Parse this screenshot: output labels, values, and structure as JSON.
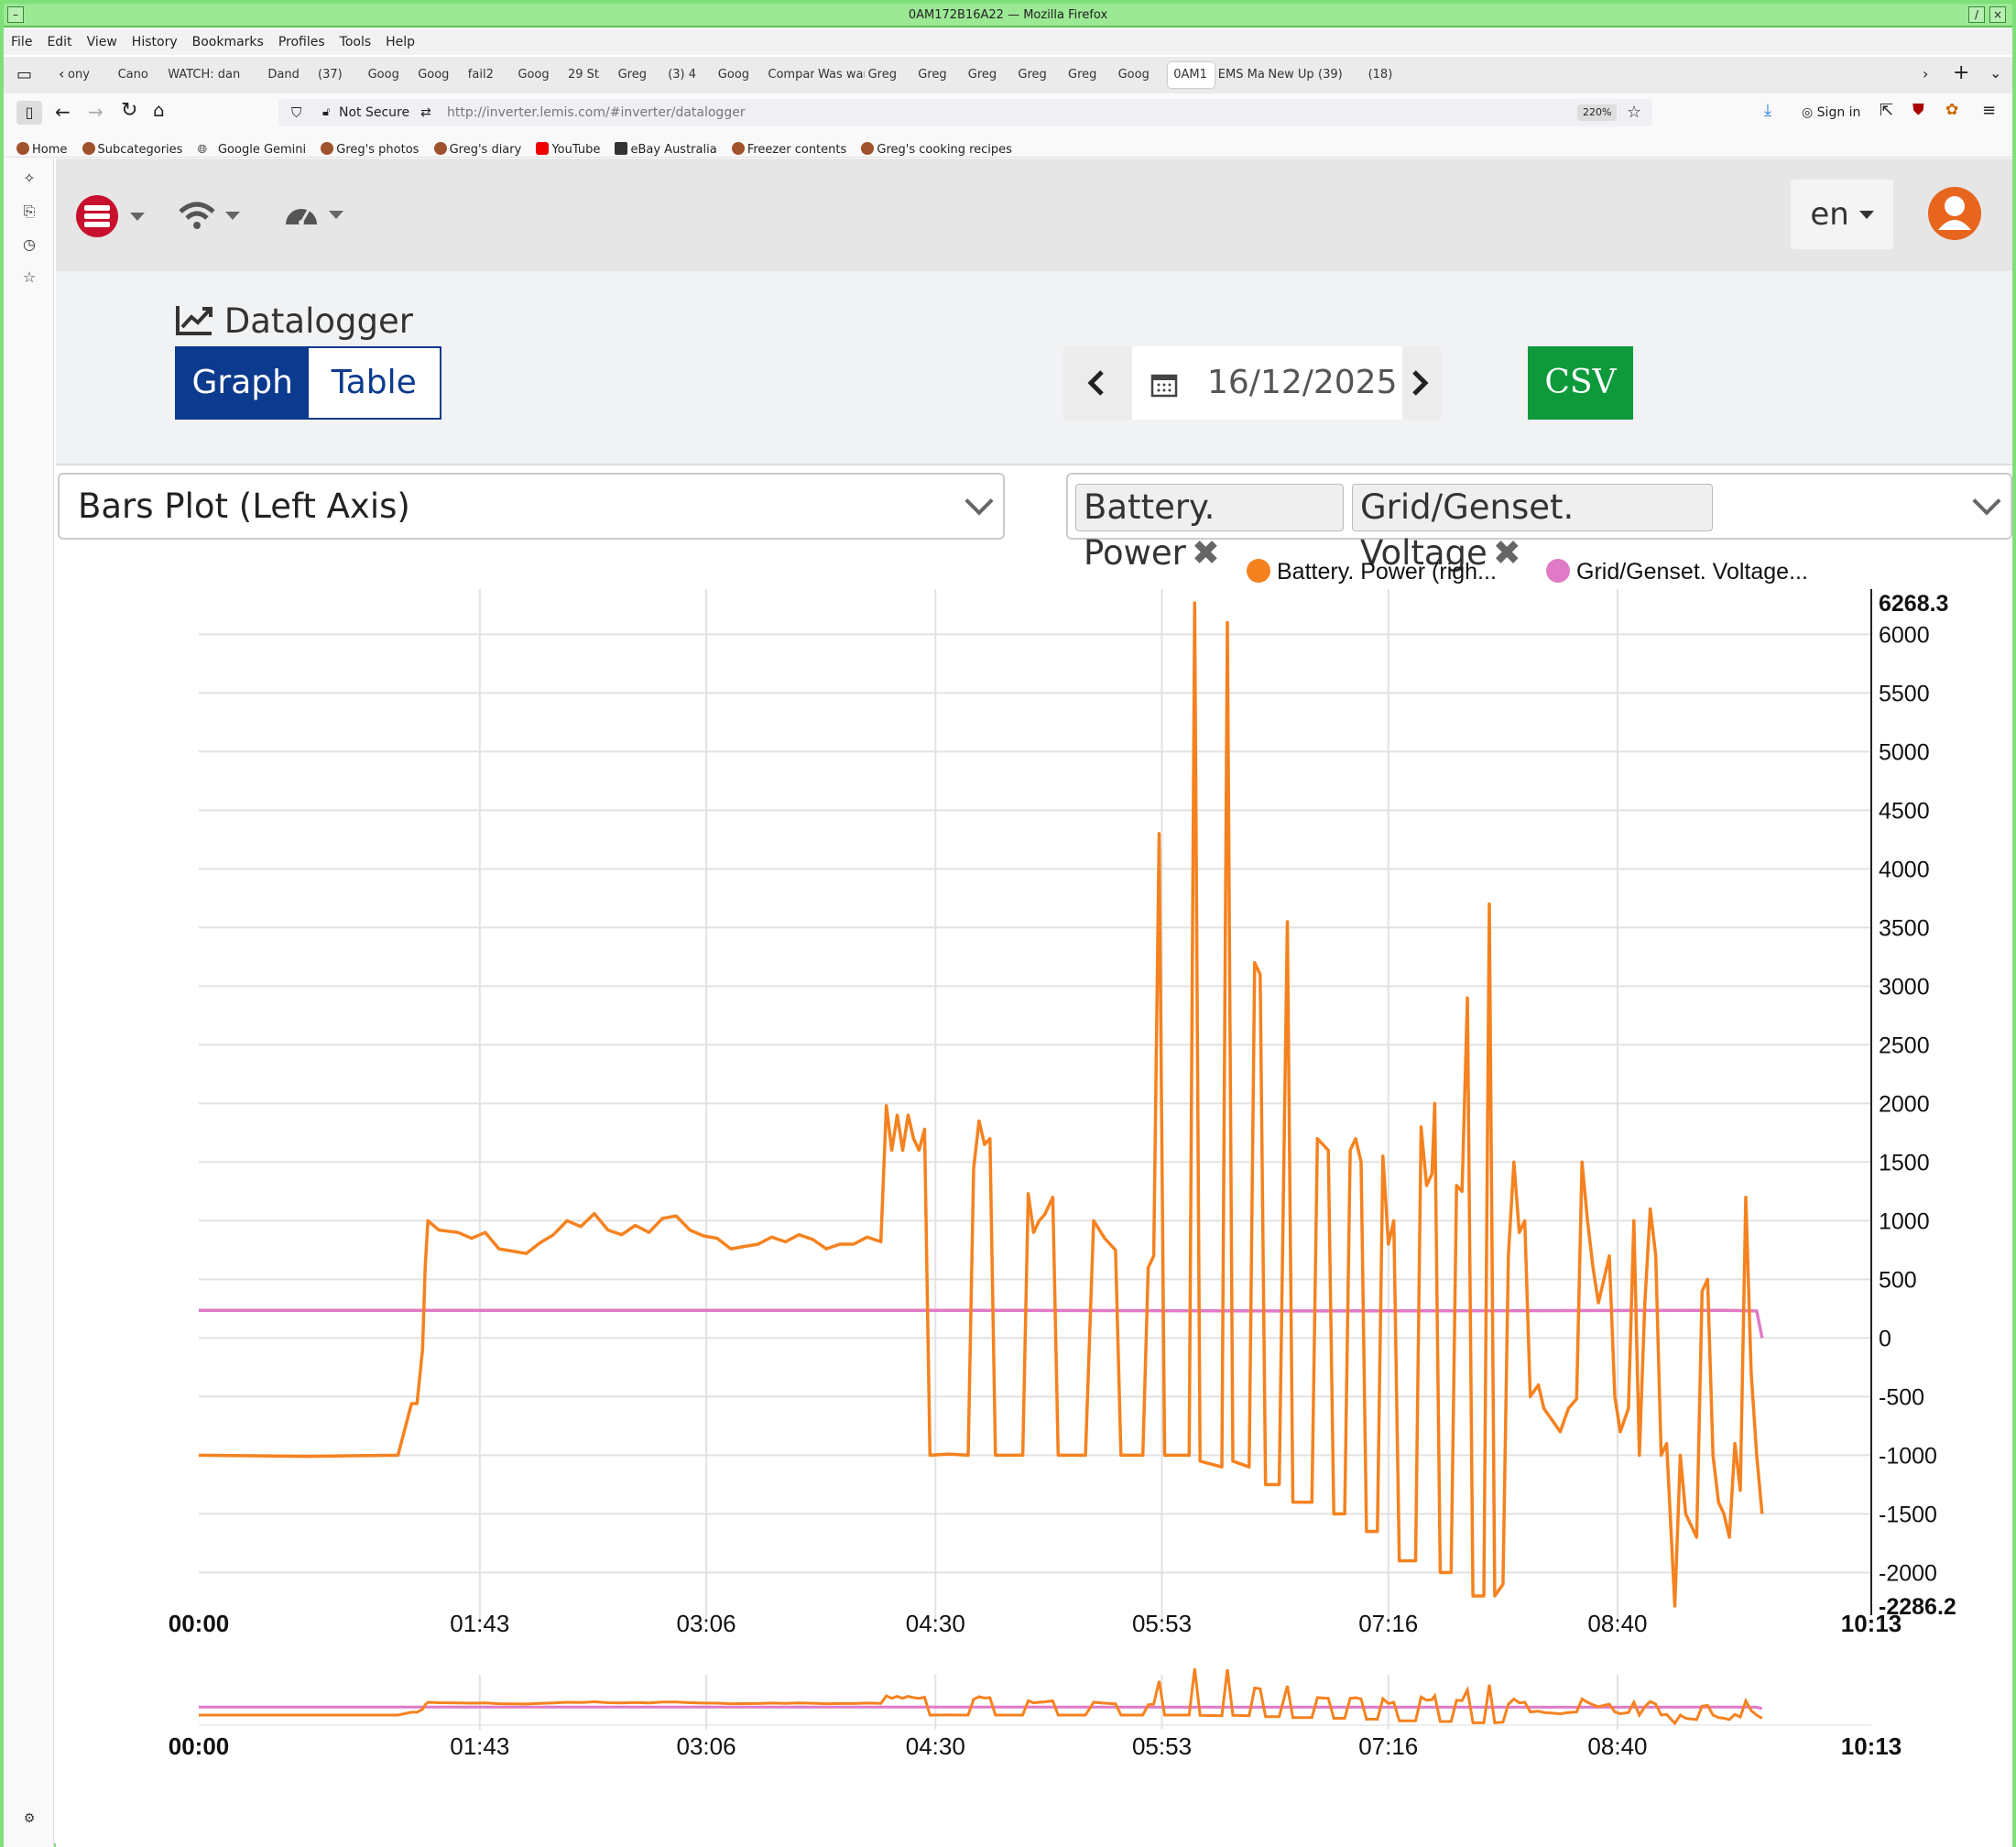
{
  "window": {
    "title": "0AM172B16A22 — Mozilla Firefox"
  },
  "menu": [
    "File",
    "Edit",
    "View",
    "History",
    "Bookmarks",
    "Profiles",
    "Tools",
    "Help"
  ],
  "tabs": [
    "ony",
    "Cano",
    "WATCH:",
    "dan",
    "Dand",
    "(37)",
    "Goog",
    "Goog",
    "fail2",
    "Goog",
    "29 St",
    "Greg",
    "(3) 4",
    "Goog",
    "Compar",
    "Was war",
    "Greg",
    "Greg",
    "Greg",
    "Greg",
    "Greg",
    "Goog",
    "0AM1",
    "EMS Mar",
    "New Up",
    "(39)",
    "(18)"
  ],
  "active_tab": "0AM1",
  "nav": {
    "security": "Not Secure",
    "url": "http://inverter.lemis.com/#inverter/datalogger",
    "zoom": "220%",
    "sign_in": "Sign in"
  },
  "bookmarks": [
    "Home",
    "Subcategories",
    "Google Gemini",
    "Greg's photos",
    "Greg's diary",
    "YouTube",
    "eBay Australia",
    "Freezer contents",
    "Greg's cooking recipes"
  ],
  "app": {
    "lang": "en",
    "page_title": "Datalogger",
    "view_graph": "Graph",
    "view_table": "Table",
    "date": "16/12/2025",
    "csv": "CSV",
    "plot_type": "Bars Plot (Left Axis)",
    "selected_series": [
      "Battery. Power",
      "Grid/Genset. Voltage"
    ]
  },
  "colors": {
    "accent": "#0b3a8e",
    "csv": "#0e9a3b",
    "battery": "#f5821f",
    "grid": "#e07ac6",
    "logo": "#c8102e",
    "avatar": "#e8651e"
  },
  "chart_data": {
    "type": "line",
    "legend": [
      "Battery. Power (righ...",
      "Grid/Genset. Voltage..."
    ],
    "legend_position": "top-right",
    "x_ticks": [
      "00:00",
      "01:43",
      "03:06",
      "04:30",
      "05:53",
      "07:16",
      "08:40",
      "10:13"
    ],
    "x_range_minutes": [
      0,
      613
    ],
    "y_ticks": [
      "6268.3",
      "6000",
      "5500",
      "5000",
      "4500",
      "4000",
      "3500",
      "3000",
      "2500",
      "2000",
      "1500",
      "1000",
      "500",
      "0",
      "-500",
      "-1000",
      "-1500",
      "-2000",
      "-2286.2"
    ],
    "y_range": [
      -2286.2,
      6268.3
    ],
    "grid": true,
    "series": [
      {
        "name": "Battery. Power",
        "color": "#f5821f",
        "points": [
          [
            0,
            -1000
          ],
          [
            40,
            -1010
          ],
          [
            73,
            -1000
          ],
          [
            78,
            -560
          ],
          [
            80,
            -560
          ],
          [
            82,
            -100
          ],
          [
            83,
            600
          ],
          [
            84,
            1000
          ],
          [
            88,
            920
          ],
          [
            95,
            900
          ],
          [
            100,
            850
          ],
          [
            105,
            900
          ],
          [
            110,
            760
          ],
          [
            115,
            740
          ],
          [
            120,
            720
          ],
          [
            125,
            810
          ],
          [
            130,
            880
          ],
          [
            135,
            1000
          ],
          [
            140,
            950
          ],
          [
            145,
            1060
          ],
          [
            150,
            920
          ],
          [
            155,
            880
          ],
          [
            160,
            960
          ],
          [
            165,
            900
          ],
          [
            170,
            1020
          ],
          [
            175,
            1040
          ],
          [
            180,
            920
          ],
          [
            185,
            870
          ],
          [
            190,
            850
          ],
          [
            195,
            760
          ],
          [
            200,
            780
          ],
          [
            205,
            800
          ],
          [
            210,
            860
          ],
          [
            215,
            820
          ],
          [
            220,
            880
          ],
          [
            225,
            840
          ],
          [
            230,
            760
          ],
          [
            235,
            800
          ],
          [
            240,
            800
          ],
          [
            245,
            860
          ],
          [
            250,
            820
          ],
          [
            252,
            1980
          ],
          [
            254,
            1600
          ],
          [
            256,
            1900
          ],
          [
            258,
            1600
          ],
          [
            260,
            1900
          ],
          [
            262,
            1700
          ],
          [
            264,
            1600
          ],
          [
            266,
            1780
          ],
          [
            268,
            -1000
          ],
          [
            275,
            -990
          ],
          [
            282,
            -1000
          ],
          [
            284,
            1450
          ],
          [
            286,
            1850
          ],
          [
            288,
            1650
          ],
          [
            290,
            1700
          ],
          [
            292,
            -1000
          ],
          [
            302,
            -1000
          ],
          [
            304,
            1230
          ],
          [
            306,
            900
          ],
          [
            308,
            1000
          ],
          [
            310,
            1050
          ],
          [
            313,
            1200
          ],
          [
            315,
            -1000
          ],
          [
            325,
            -1000
          ],
          [
            328,
            1000
          ],
          [
            332,
            850
          ],
          [
            334,
            800
          ],
          [
            336,
            750
          ],
          [
            338,
            -1000
          ],
          [
            346,
            -1000
          ],
          [
            348,
            600
          ],
          [
            350,
            700
          ],
          [
            352,
            4300
          ],
          [
            354,
            -1000
          ],
          [
            363,
            -1000
          ],
          [
            365,
            6268
          ],
          [
            367,
            -1050
          ],
          [
            375,
            -1100
          ],
          [
            377,
            6100
          ],
          [
            379,
            -1050
          ],
          [
            385,
            -1100
          ],
          [
            387,
            3200
          ],
          [
            389,
            3100
          ],
          [
            391,
            -1250
          ],
          [
            396,
            -1250
          ],
          [
            399,
            3550
          ],
          [
            401,
            -1400
          ],
          [
            408,
            -1400
          ],
          [
            410,
            1700
          ],
          [
            412,
            1650
          ],
          [
            414,
            1600
          ],
          [
            416,
            -1500
          ],
          [
            420,
            -1500
          ],
          [
            422,
            1600
          ],
          [
            424,
            1700
          ],
          [
            426,
            1500
          ],
          [
            428,
            -1650
          ],
          [
            432,
            -1650
          ],
          [
            434,
            1550
          ],
          [
            436,
            800
          ],
          [
            438,
            1000
          ],
          [
            440,
            -1900
          ],
          [
            446,
            -1900
          ],
          [
            448,
            1800
          ],
          [
            450,
            1300
          ],
          [
            452,
            1400
          ],
          [
            453,
            2000
          ],
          [
            455,
            -2000
          ],
          [
            459,
            -2000
          ],
          [
            461,
            1300
          ],
          [
            463,
            1250
          ],
          [
            465,
            2900
          ],
          [
            467,
            -2200
          ],
          [
            471,
            -2200
          ],
          [
            473,
            3700
          ],
          [
            475,
            -2200
          ],
          [
            478,
            -2100
          ],
          [
            480,
            700
          ],
          [
            482,
            1500
          ],
          [
            484,
            900
          ],
          [
            486,
            1000
          ],
          [
            488,
            -500
          ],
          [
            491,
            -400
          ],
          [
            493,
            -600
          ],
          [
            496,
            -700
          ],
          [
            499,
            -800
          ],
          [
            502,
            -600
          ],
          [
            505,
            -520
          ],
          [
            507,
            1500
          ],
          [
            509,
            1000
          ],
          [
            511,
            600
          ],
          [
            513,
            300
          ],
          [
            515,
            500
          ],
          [
            517,
            700
          ],
          [
            519,
            -500
          ],
          [
            521,
            -800
          ],
          [
            524,
            -600
          ],
          [
            526,
            1000
          ],
          [
            528,
            -1000
          ],
          [
            530,
            300
          ],
          [
            532,
            1100
          ],
          [
            534,
            700
          ],
          [
            536,
            -1000
          ],
          [
            538,
            -900
          ],
          [
            541,
            -2286
          ],
          [
            543,
            -1000
          ],
          [
            545,
            -1500
          ],
          [
            547,
            -1600
          ],
          [
            549,
            -1700
          ],
          [
            551,
            400
          ],
          [
            553,
            500
          ],
          [
            555,
            -1000
          ],
          [
            557,
            -1400
          ],
          [
            559,
            -1500
          ],
          [
            561,
            -1700
          ],
          [
            563,
            -900
          ],
          [
            565,
            -1300
          ],
          [
            567,
            1200
          ],
          [
            569,
            -300
          ],
          [
            571,
            -1000
          ],
          [
            573,
            -1500
          ]
        ]
      },
      {
        "name": "Grid/Genset. Voltage",
        "color": "#e07ac6",
        "points": [
          [
            0,
            235
          ],
          [
            300,
            235
          ],
          [
            400,
            230
          ],
          [
            560,
            235
          ],
          [
            571,
            230
          ],
          [
            573,
            0
          ]
        ]
      }
    ]
  }
}
